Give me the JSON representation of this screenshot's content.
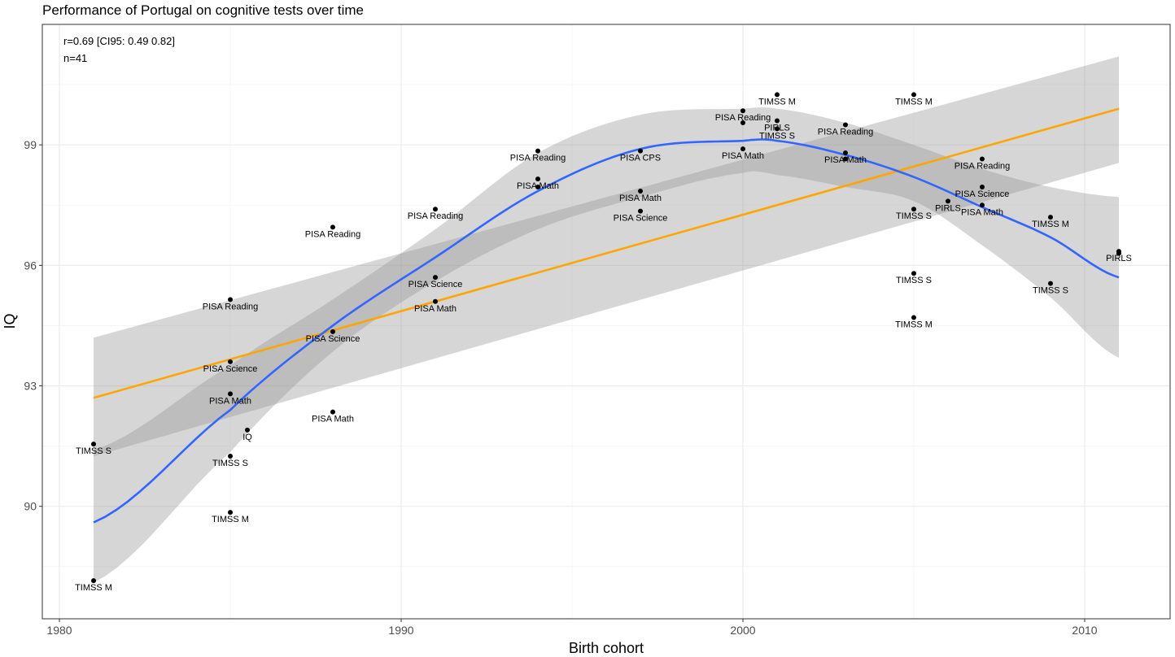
{
  "chart_data": {
    "type": "scatter",
    "title": "Performance of Portugal on cognitive tests over time",
    "xlabel": "Birth cohort",
    "ylabel": "IQ",
    "xlim": [
      1979.5,
      2012.5
    ],
    "ylim": [
      87.2,
      102.0
    ],
    "x_ticks": [
      1980,
      1990,
      2000,
      2010
    ],
    "y_ticks": [
      90,
      93,
      96,
      99
    ],
    "grid": true,
    "annotations": [
      "r=0.69 [CI95: 0.49 0.82]",
      "n=41"
    ],
    "points": [
      {
        "x": 1981,
        "y": 91.55,
        "label": "TIMSS S"
      },
      {
        "x": 1981,
        "y": 88.15,
        "label": "TIMSS M"
      },
      {
        "x": 1985,
        "y": 95.15,
        "label": "PISA Reading"
      },
      {
        "x": 1985,
        "y": 93.6,
        "label": "PISA Science"
      },
      {
        "x": 1985,
        "y": 92.8,
        "label": "PISA Math"
      },
      {
        "x": 1985,
        "y": 91.25,
        "label": "TIMSS S"
      },
      {
        "x": 1985,
        "y": 89.85,
        "label": "TIMSS M"
      },
      {
        "x": 1985.5,
        "y": 91.9,
        "label": "IQ"
      },
      {
        "x": 1988,
        "y": 96.95,
        "label": "PISA Reading"
      },
      {
        "x": 1988,
        "y": 94.35,
        "label": "PISA Science"
      },
      {
        "x": 1988,
        "y": 92.35,
        "label": "PISA Math"
      },
      {
        "x": 1991,
        "y": 97.4,
        "label": "PISA Reading"
      },
      {
        "x": 1991,
        "y": 95.7,
        "label": "PISA Science"
      },
      {
        "x": 1991,
        "y": 95.1,
        "label": "PISA Math"
      },
      {
        "x": 1994,
        "y": 98.85,
        "label": "PISA Reading"
      },
      {
        "x": 1994,
        "y": 98.15,
        "label": "PISA Math"
      },
      {
        "x": 1994,
        "y": 97.95,
        "label": ""
      },
      {
        "x": 1997,
        "y": 98.85,
        "label": "PISA CPS"
      },
      {
        "x": 1997,
        "y": 97.85,
        "label": "PISA Math"
      },
      {
        "x": 1997,
        "y": 97.35,
        "label": "PISA Science"
      },
      {
        "x": 2000,
        "y": 99.85,
        "label": "PISA Reading"
      },
      {
        "x": 2000,
        "y": 99.55,
        "label": ""
      },
      {
        "x": 2000,
        "y": 98.9,
        "label": "PISA Math"
      },
      {
        "x": 2001,
        "y": 100.25,
        "label": "TIMSS M"
      },
      {
        "x": 2001,
        "y": 99.6,
        "label": "PIRLS"
      },
      {
        "x": 2001,
        "y": 99.4,
        "label": "TIMSS S"
      },
      {
        "x": 2003,
        "y": 99.5,
        "label": "PISA Reading"
      },
      {
        "x": 2003,
        "y": 98.8,
        "label": "PISA Math"
      },
      {
        "x": 2003,
        "y": 98.65,
        "label": ""
      },
      {
        "x": 2005,
        "y": 100.25,
        "label": "TIMSS M"
      },
      {
        "x": 2005,
        "y": 97.4,
        "label": "TIMSS S"
      },
      {
        "x": 2005,
        "y": 95.8,
        "label": "TIMSS S"
      },
      {
        "x": 2005,
        "y": 94.7,
        "label": "TIMSS M"
      },
      {
        "x": 2006,
        "y": 97.6,
        "label": "PIRLS"
      },
      {
        "x": 2007,
        "y": 98.65,
        "label": "PISA Reading"
      },
      {
        "x": 2007,
        "y": 97.95,
        "label": "PISA Science"
      },
      {
        "x": 2007,
        "y": 97.5,
        "label": "PISA Math"
      },
      {
        "x": 2009,
        "y": 97.2,
        "label": "TIMSS M"
      },
      {
        "x": 2009,
        "y": 95.55,
        "label": "TIMSS S"
      },
      {
        "x": 2011,
        "y": 96.35,
        "label": "PIRLS"
      },
      {
        "x": 2011,
        "y": 96.3,
        "label": ""
      }
    ],
    "series": [
      {
        "type": "linear-fit",
        "color": "#FFA500",
        "x": [
          1981,
          2011
        ],
        "y": [
          92.7,
          99.9
        ],
        "ci_lower": [
          91.25,
          98.55
        ],
        "ci_upper": [
          94.2,
          101.2
        ]
      },
      {
        "type": "loess-fit",
        "color": "#3366FF",
        "x": [
          1981,
          1985,
          1988,
          1991,
          1994,
          1997,
          2000,
          2001,
          2003,
          2005,
          2007,
          2009,
          2011
        ],
        "y": [
          89.6,
          92.4,
          94.5,
          96.2,
          97.85,
          98.9,
          99.1,
          99.1,
          98.75,
          98.2,
          97.45,
          96.7,
          95.7
        ],
        "ci_lower": [
          88.1,
          91.35,
          93.85,
          95.6,
          96.9,
          97.7,
          98.3,
          98.25,
          97.95,
          97.6,
          96.5,
          95.2,
          93.7
        ],
        "ci_upper": [
          91.4,
          93.5,
          95.15,
          96.9,
          98.8,
          99.75,
          99.9,
          99.9,
          99.55,
          99.0,
          98.4,
          97.95,
          97.7
        ]
      }
    ],
    "colors": {
      "points": "#000000",
      "ribbon": "#999999",
      "grid": "#ebebeb",
      "panel_border": "#333333"
    }
  }
}
